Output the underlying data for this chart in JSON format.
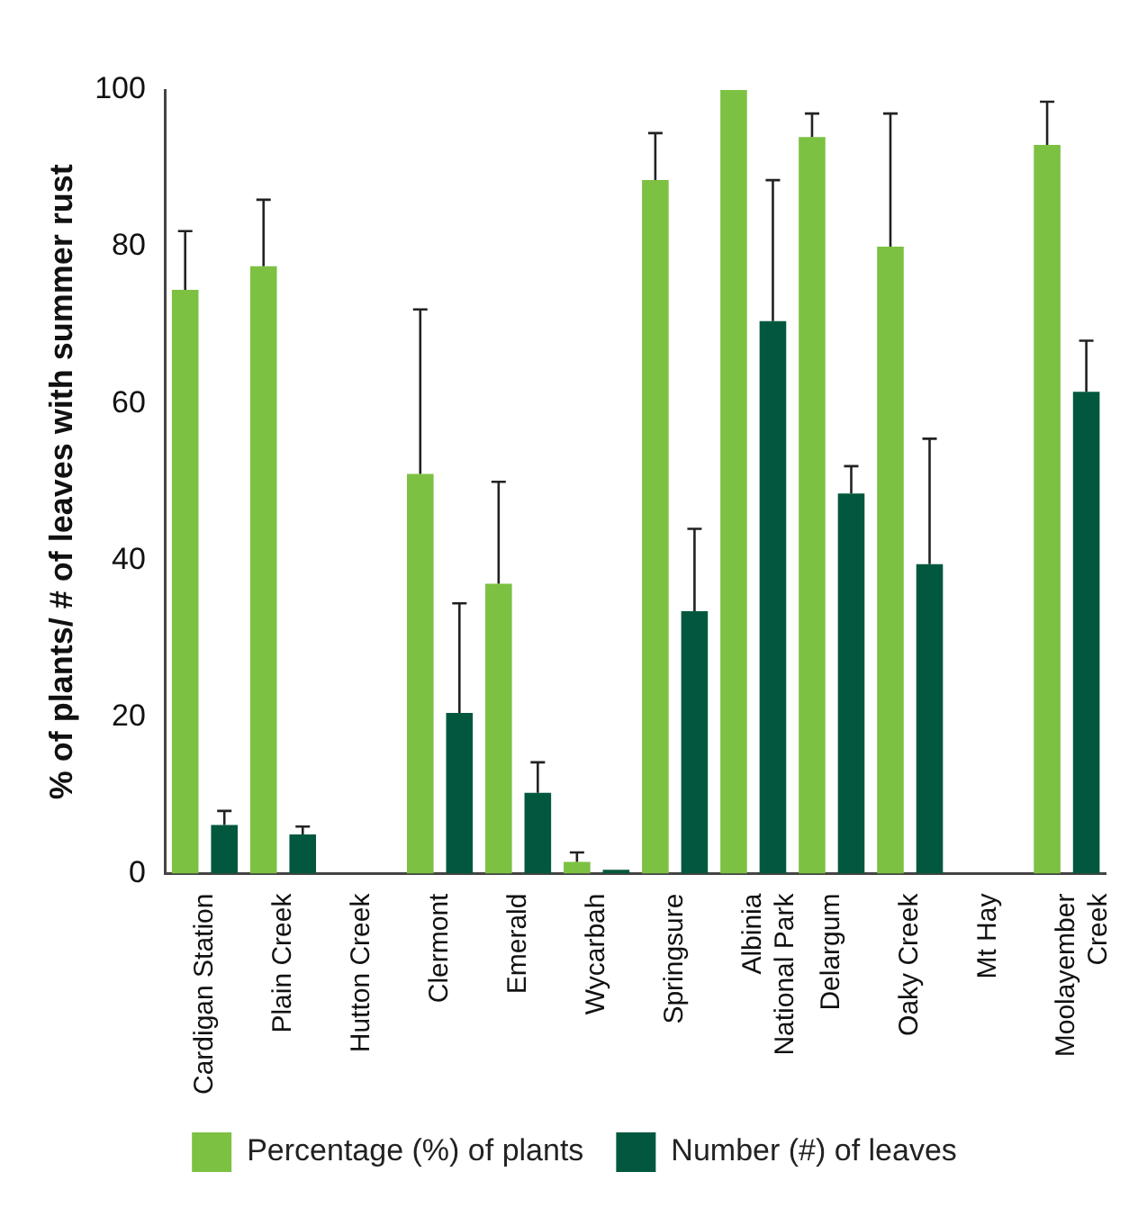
{
  "chart_data": {
    "type": "bar",
    "ylabel": "% of plants/ # of leaves with summer rust",
    "categories": [
      "Cardigan Station",
      "Plain Creek",
      "Hutton Creek",
      "Clermont",
      "Emerald",
      "Wycarbah",
      "Springsure",
      "Albinia National Park",
      "Delargum",
      "Oaky Creek",
      "Mt Hay",
      "Moolayember Creek"
    ],
    "series": [
      {
        "name": "Percentage (%) of plants",
        "color": "#7cc142",
        "values": [
          74.5,
          77.5,
          0,
          51,
          37,
          1.5,
          88.5,
          100,
          94,
          80,
          0,
          93
        ],
        "errors": [
          [
            74.5,
            82
          ],
          [
            77.5,
            86
          ],
          null,
          [
            51,
            72
          ],
          [
            37,
            50
          ],
          [
            1.5,
            2.7
          ],
          [
            88.5,
            94.5
          ],
          null,
          [
            94,
            97
          ],
          [
            80,
            97
          ],
          null,
          [
            93,
            98.5
          ]
        ]
      },
      {
        "name": "Number (#) of leaves",
        "color": "#02583e",
        "values": [
          6.2,
          5,
          0,
          20.5,
          10.3,
          0.5,
          33.5,
          70.5,
          48.5,
          39.5,
          0,
          61.5
        ],
        "errors": [
          [
            6.2,
            8
          ],
          [
            5,
            6
          ],
          null,
          [
            20.5,
            34.5
          ],
          [
            10.3,
            14.2
          ],
          null,
          [
            33.5,
            44
          ],
          [
            70.5,
            88.5
          ],
          [
            48.5,
            52
          ],
          [
            39.5,
            55.5
          ],
          null,
          [
            61.5,
            68
          ]
        ]
      }
    ],
    "ylim": [
      0,
      100
    ],
    "yticks": [
      0,
      20,
      40,
      60,
      80,
      100
    ],
    "grid": false,
    "legend": "bottom"
  }
}
